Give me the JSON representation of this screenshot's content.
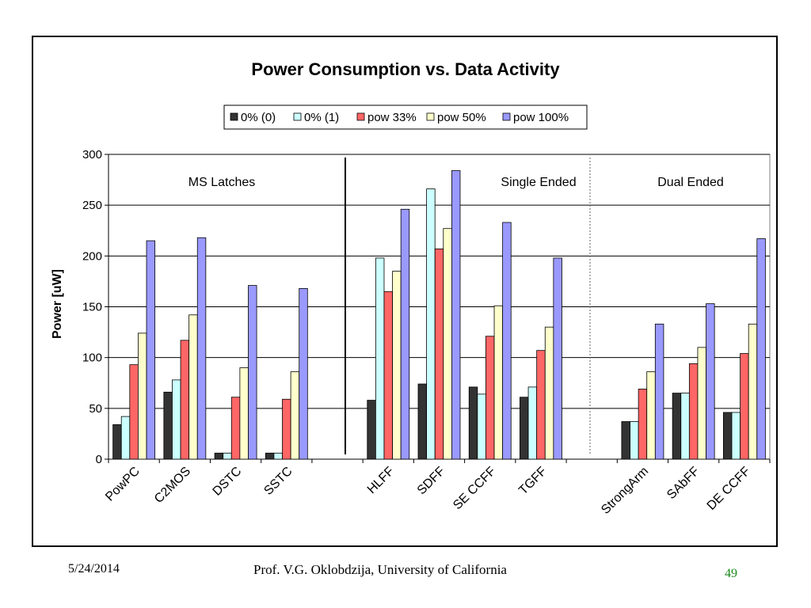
{
  "slide": {
    "date": "5/24/2014",
    "author": "Prof. V.G. Oklobdzija, University of California",
    "page": "49"
  },
  "colors": {
    "page_number": "#1a8a1a"
  },
  "chart_data": {
    "type": "bar",
    "title": "Power Consumption vs. Data Activity",
    "xlabel": "",
    "ylabel": "Power [uW]",
    "ylim": [
      0,
      300
    ],
    "yticks": [
      0,
      50,
      100,
      150,
      200,
      250,
      300
    ],
    "grid": true,
    "legend_position": "top",
    "categories": [
      "PowPC",
      "C2MOS",
      "DSTC",
      "SSTC",
      "",
      "HLFF",
      "SDFF",
      "SE CCFF",
      "TGFF",
      "",
      "StrongArm",
      "SAbFF",
      "DE CCFF"
    ],
    "series": [
      {
        "name": "0% (0)",
        "color": "#333333",
        "values": [
          34,
          66,
          6,
          6,
          null,
          58,
          74,
          71,
          61,
          null,
          37,
          65,
          46
        ]
      },
      {
        "name": "0% (1)",
        "color": "#ccffff",
        "values": [
          42,
          78,
          6,
          6,
          null,
          198,
          266,
          64,
          71,
          null,
          37,
          65,
          46
        ]
      },
      {
        "name": "pow 33%",
        "color": "#ff6666",
        "values": [
          93,
          117,
          61,
          59,
          null,
          165,
          207,
          121,
          107,
          null,
          69,
          94,
          104
        ]
      },
      {
        "name": "pow 50%",
        "color": "#ffffcc",
        "values": [
          124,
          142,
          90,
          86,
          null,
          185,
          227,
          151,
          130,
          null,
          86,
          110,
          133
        ]
      },
      {
        "name": "pow 100%",
        "color": "#9999ff",
        "values": [
          215,
          218,
          171,
          168,
          null,
          246,
          284,
          233,
          198,
          null,
          133,
          153,
          217
        ]
      }
    ],
    "annotations": [
      {
        "text": "MS Latches"
      },
      {
        "text": "Single Ended"
      },
      {
        "text": "Dual Ended"
      }
    ]
  }
}
